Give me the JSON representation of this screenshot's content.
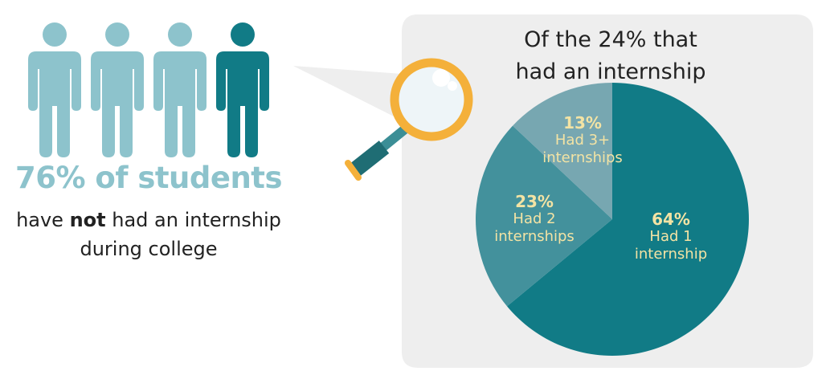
{
  "headline": "76% of students",
  "subtext": {
    "pre": "have ",
    "bold": "not",
    "post": " had an internship",
    "line2": "during college"
  },
  "icons": {
    "person": "person-icon",
    "magnifier": "magnifying-glass-icon"
  },
  "colors": {
    "light_teal": "#8dc3cc",
    "dark_teal": "#117b86",
    "bubble": "#eeeeee",
    "label": "#f3e3a4"
  },
  "people": {
    "total": 4,
    "highlighted_index": 3
  },
  "bubble": {
    "title_line1": "Of the 24% that",
    "title_line2": "had an internship"
  },
  "chart_data": {
    "type": "pie",
    "title": "Of the 24% that had an internship",
    "slices": [
      {
        "pct": "64%",
        "label_line1": "Had 1",
        "label_line2": "internship",
        "value": 64,
        "color": "#117b86"
      },
      {
        "pct": "23%",
        "label_line1": "Had 2",
        "label_line2": "internships",
        "value": 23,
        "color": "#43919c"
      },
      {
        "pct": "13%",
        "label_line1": "Had 3+",
        "label_line2": "internships",
        "value": 13,
        "color": "#77a7b1"
      }
    ]
  }
}
